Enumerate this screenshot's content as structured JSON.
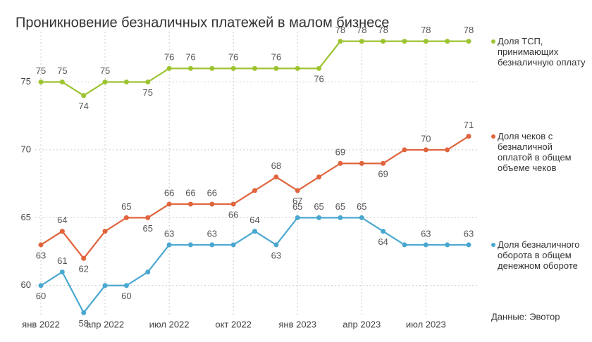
{
  "chart_data": {
    "type": "line",
    "title": "Проникновение безналичных платежей в малом бизнесе",
    "source": "Данные: Эвотор",
    "categories": [
      "янв 2022",
      null,
      null,
      "апр 2022",
      null,
      null,
      "июл 2022",
      null,
      null,
      "окт 2022",
      null,
      null,
      "янв 2023",
      null,
      null,
      "апр 2023",
      null,
      null,
      "июл 2023",
      null,
      null
    ],
    "ylim": [
      57.5,
      78.5
    ],
    "yticks": [
      60,
      65,
      70,
      75
    ],
    "grid": true,
    "series": [
      {
        "name": "Доля ТСП, принимающих безналичную оплату",
        "color": "#9cc430",
        "values": [
          75,
          75,
          74,
          75,
          75,
          75,
          76,
          76,
          76,
          76,
          76,
          76,
          76,
          76,
          78,
          78,
          78,
          78,
          78,
          78,
          78
        ],
        "value_labels": [
          "75",
          "75",
          "74",
          "75",
          null,
          "75",
          "76",
          "76",
          null,
          "76",
          null,
          "76",
          null,
          "76",
          "78",
          "78",
          "78",
          null,
          "78",
          null,
          "78"
        ]
      },
      {
        "name": "Доля чеков с безналичной оплатой в общем объеме чеков",
        "color": "#e0643c",
        "values": [
          63,
          64,
          62,
          64,
          65,
          65,
          66,
          66,
          66,
          66,
          67,
          68,
          67,
          68,
          69,
          69,
          69,
          70,
          70,
          70,
          71
        ],
        "value_labels": [
          "63",
          "64",
          "62",
          null,
          "65",
          "65",
          "66",
          "66",
          "66",
          "66",
          null,
          "68",
          "67",
          null,
          "69",
          null,
          "69",
          null,
          "70",
          null,
          "71"
        ]
      },
      {
        "name": "Доля безналичного оборота в общем денежном обороте",
        "color": "#4aa8d0",
        "values": [
          60,
          61,
          58,
          60,
          60,
          61,
          63,
          63,
          63,
          63,
          64,
          63,
          65,
          65,
          65,
          65,
          64,
          63,
          63,
          63,
          63
        ],
        "value_labels": [
          "60",
          "61",
          "58",
          null,
          "60",
          null,
          "63",
          null,
          "63",
          null,
          "64",
          "63",
          "65",
          "65",
          "65",
          "65",
          "64",
          null,
          "63",
          null,
          "63"
        ]
      }
    ]
  }
}
